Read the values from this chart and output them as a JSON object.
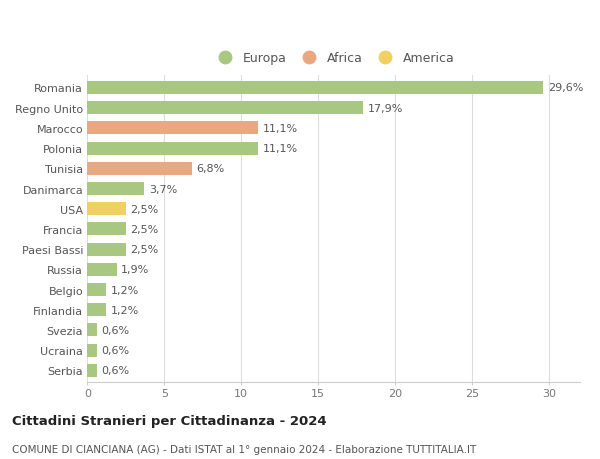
{
  "countries": [
    "Romania",
    "Regno Unito",
    "Marocco",
    "Polonia",
    "Tunisia",
    "Danimarca",
    "USA",
    "Francia",
    "Paesi Bassi",
    "Russia",
    "Belgio",
    "Finlandia",
    "Svezia",
    "Ucraina",
    "Serbia"
  ],
  "values": [
    29.6,
    17.9,
    11.1,
    11.1,
    6.8,
    3.7,
    2.5,
    2.5,
    2.5,
    1.9,
    1.2,
    1.2,
    0.6,
    0.6,
    0.6
  ],
  "continents": [
    "Europa",
    "Europa",
    "Africa",
    "Europa",
    "Africa",
    "Europa",
    "America",
    "Europa",
    "Europa",
    "Europa",
    "Europa",
    "Europa",
    "Europa",
    "Europa",
    "Europa"
  ],
  "colors": {
    "Europa": "#a8c882",
    "Africa": "#e8a882",
    "America": "#f0d060"
  },
  "title1": "Cittadini Stranieri per Cittadinanza - 2024",
  "title2": "COMUNE DI CIANCIANA (AG) - Dati ISTAT al 1° gennaio 2024 - Elaborazione TUTTITALIA.IT",
  "xlim": [
    0,
    32
  ],
  "xticks": [
    0,
    5,
    10,
    15,
    20,
    25,
    30
  ],
  "background_color": "#ffffff",
  "grid_color": "#dddddd",
  "bar_height": 0.65,
  "label_fontsize": 8,
  "tick_fontsize": 8,
  "value_fontsize": 8,
  "title1_fontsize": 9.5,
  "title2_fontsize": 7.5,
  "legend_fontsize": 9
}
